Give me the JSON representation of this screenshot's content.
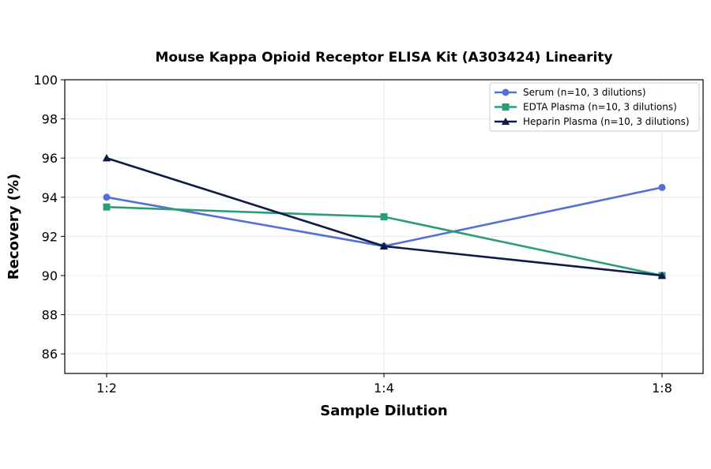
{
  "chart_data": {
    "type": "line",
    "title": "Mouse Kappa Opioid Receptor ELISA Kit (A303424) Linearity",
    "xlabel": "Sample Dilution",
    "ylabel": "Recovery (%)",
    "categories": [
      "1:2",
      "1:4",
      "1:8"
    ],
    "ylim": [
      85,
      100
    ],
    "yticks": [
      86,
      88,
      90,
      92,
      94,
      96,
      98,
      100
    ],
    "grid": true,
    "legend_position": "top-right",
    "series": [
      {
        "name": "Serum (n=10, 3 dilutions)",
        "values": [
          94.0,
          91.5,
          94.5
        ],
        "color": "#5470d6",
        "marker": "circle"
      },
      {
        "name": "EDTA Plasma (n=10, 3 dilutions)",
        "values": [
          93.5,
          93.0,
          90.0
        ],
        "color": "#2a9d78",
        "marker": "square"
      },
      {
        "name": "Heparin Plasma (n=10, 3 dilutions)",
        "values": [
          96.0,
          91.5,
          90.0
        ],
        "color": "#0d1b45",
        "marker": "triangle"
      }
    ]
  }
}
